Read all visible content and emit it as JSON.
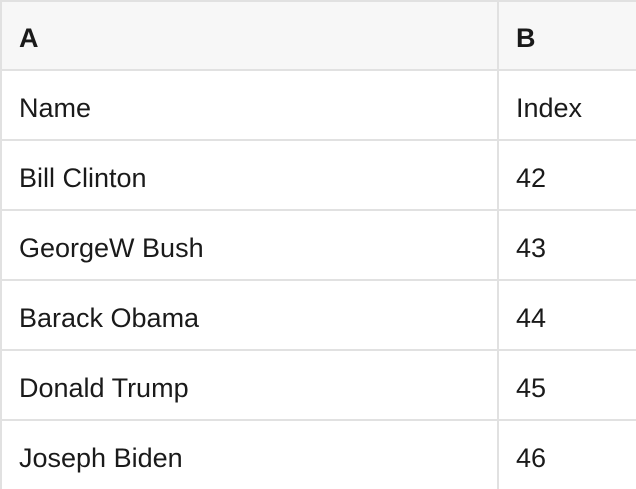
{
  "table": {
    "header": [
      "A",
      "B"
    ],
    "rows": [
      [
        "Name",
        "Index"
      ],
      [
        "Bill Clinton",
        "42"
      ],
      [
        "GeorgeW Bush",
        "43"
      ],
      [
        "Barack Obama",
        "44"
      ],
      [
        "Donald Trump",
        "45"
      ],
      [
        "Joseph Biden",
        "46"
      ]
    ],
    "colors": {
      "header_bg": "#f7f7f7",
      "row_bg": "#ffffff",
      "border": "#e1e1e1",
      "text": "#1a1a1a"
    }
  }
}
